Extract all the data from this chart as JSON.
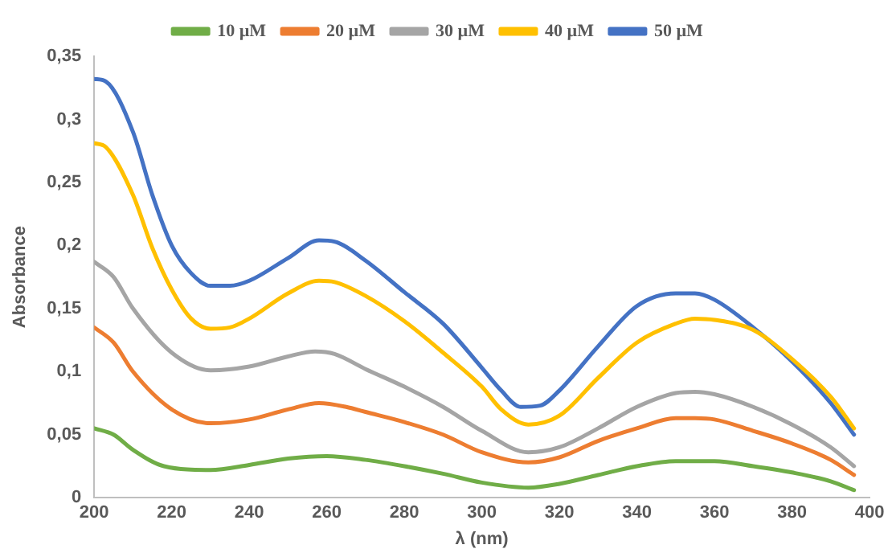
{
  "chart_data": {
    "type": "line",
    "xlabel": "λ (nm)",
    "ylabel": "Absorbance",
    "xlim": [
      200,
      400
    ],
    "xticks": [
      200,
      220,
      240,
      260,
      280,
      300,
      320,
      340,
      360,
      380,
      400
    ],
    "ylim": [
      0,
      0.35
    ],
    "yticks": [
      0,
      {
        "value": 0.05,
        "label": "0,05"
      },
      {
        "value": 0.1,
        "label": "0,1"
      },
      {
        "value": 0.15,
        "label": "0,15"
      },
      {
        "value": 0.2,
        "label": "0,2"
      },
      {
        "value": 0.25,
        "label": "0,25"
      },
      {
        "value": 0.3,
        "label": "0,3"
      },
      {
        "value": 0.35,
        "label": "0,35"
      }
    ],
    "grid": false,
    "legend": "top",
    "marker": "none",
    "line_style": "solid",
    "series": [
      {
        "name": "10 µM",
        "color": "#70ad47",
        "x": [
          200,
          205,
          210,
          218,
          230,
          240,
          250,
          260,
          270,
          280,
          290,
          300,
          312,
          320,
          330,
          340,
          350,
          360,
          370,
          380,
          390,
          396
        ],
        "values": [
          0.055,
          0.05,
          0.038,
          0.025,
          0.022,
          0.026,
          0.031,
          0.033,
          0.03,
          0.025,
          0.019,
          0.012,
          0.008,
          0.011,
          0.018,
          0.025,
          0.029,
          0.029,
          0.025,
          0.02,
          0.013,
          0.006
        ]
      },
      {
        "name": "20 µM",
        "color": "#ed7d31",
        "x": [
          200,
          205,
          210,
          220,
          230,
          240,
          250,
          258,
          265,
          270,
          280,
          290,
          300,
          312,
          320,
          330,
          340,
          350,
          355,
          360,
          370,
          380,
          390,
          396
        ],
        "values": [
          0.135,
          0.123,
          0.1,
          0.07,
          0.059,
          0.062,
          0.07,
          0.075,
          0.072,
          0.068,
          0.06,
          0.05,
          0.036,
          0.028,
          0.032,
          0.045,
          0.055,
          0.063,
          0.063,
          0.062,
          0.053,
          0.043,
          0.03,
          0.018
        ]
      },
      {
        "name": "30 µM",
        "color": "#a5a5a5",
        "x": [
          200,
          205,
          210,
          220,
          230,
          240,
          250,
          257,
          262,
          270,
          280,
          290,
          300,
          312,
          320,
          330,
          340,
          350,
          355,
          360,
          370,
          380,
          390,
          396
        ],
        "values": [
          0.187,
          0.175,
          0.15,
          0.115,
          0.101,
          0.104,
          0.112,
          0.116,
          0.114,
          0.102,
          0.088,
          0.072,
          0.053,
          0.036,
          0.04,
          0.055,
          0.072,
          0.083,
          0.084,
          0.082,
          0.072,
          0.058,
          0.04,
          0.025
        ]
      },
      {
        "name": "40 µM",
        "color": "#ffc000",
        "x": [
          200,
          203,
          210,
          215,
          220,
          225,
          230,
          235,
          240,
          250,
          258,
          262,
          270,
          280,
          290,
          300,
          305,
          312,
          320,
          330,
          340,
          350,
          355,
          360,
          370,
          380,
          390,
          396
        ],
        "values": [
          0.281,
          0.278,
          0.24,
          0.198,
          0.165,
          0.142,
          0.134,
          0.135,
          0.142,
          0.162,
          0.172,
          0.171,
          0.16,
          0.14,
          0.115,
          0.088,
          0.07,
          0.058,
          0.065,
          0.095,
          0.123,
          0.138,
          0.142,
          0.141,
          0.133,
          0.11,
          0.08,
          0.055
        ]
      },
      {
        "name": "50 µM",
        "color": "#4472c4",
        "x": [
          200,
          203,
          210,
          215,
          220,
          225,
          230,
          235,
          240,
          250,
          258,
          262,
          270,
          280,
          290,
          300,
          305,
          310,
          315,
          320,
          330,
          340,
          350,
          355,
          360,
          370,
          380,
          390,
          396
        ],
        "values": [
          0.332,
          0.33,
          0.29,
          0.24,
          0.2,
          0.178,
          0.168,
          0.168,
          0.172,
          0.19,
          0.204,
          0.203,
          0.188,
          0.163,
          0.138,
          0.103,
          0.085,
          0.072,
          0.073,
          0.085,
          0.12,
          0.152,
          0.162,
          0.162,
          0.157,
          0.135,
          0.108,
          0.075,
          0.05
        ]
      }
    ]
  }
}
